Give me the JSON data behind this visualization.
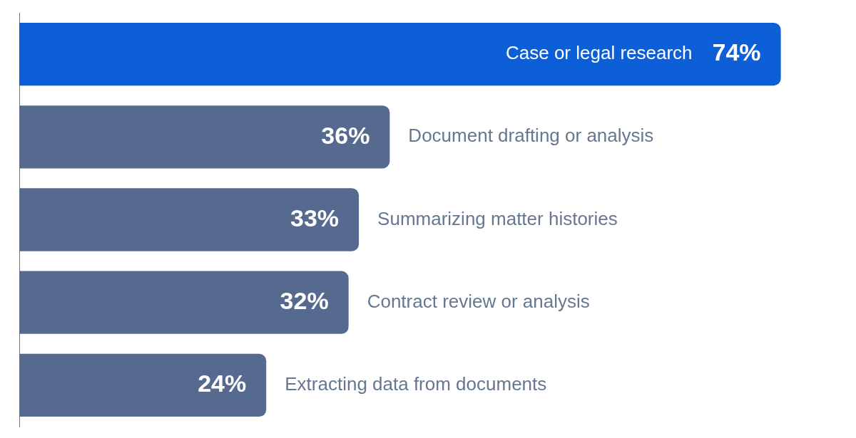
{
  "chart_data": {
    "type": "bar",
    "orientation": "horizontal",
    "categories": [
      "Case or legal research",
      "Document drafting or analysis",
      "Summarizing matter histories",
      "Contract review or analysis",
      "Extracting data from documents"
    ],
    "values": [
      74,
      36,
      33,
      32,
      24
    ],
    "colors": [
      "#0d5fd8",
      "#56698f",
      "#56698f",
      "#56698f",
      "#56698f"
    ],
    "value_labels": [
      "74%",
      "36%",
      "33%",
      "32%",
      "24%"
    ],
    "legend": false,
    "grid": false
  }
}
